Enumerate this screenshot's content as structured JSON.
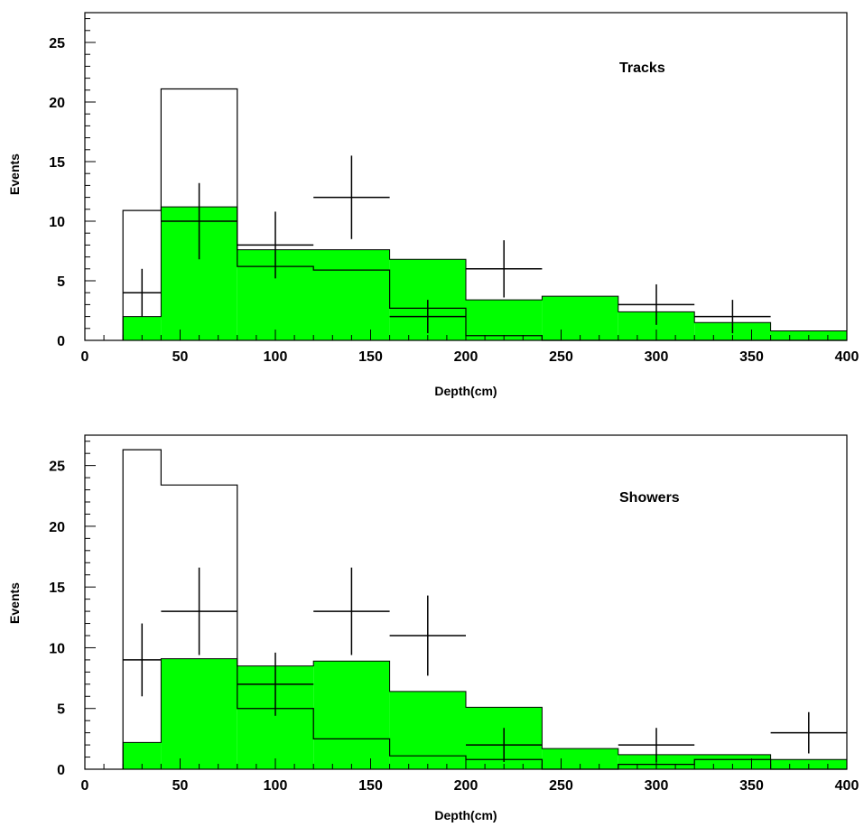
{
  "chart_data": [
    {
      "type": "histogram",
      "annotation": "Tracks",
      "xlabel": "Depth(cm)",
      "ylabel": "Events",
      "xlim": [
        0,
        400
      ],
      "ylim": [
        0,
        27.5
      ],
      "x_ticks": [
        0,
        50,
        100,
        150,
        200,
        250,
        300,
        350,
        400
      ],
      "y_ticks": [
        0,
        5,
        10,
        15,
        20,
        25
      ],
      "fill_color": "#00ff00",
      "series": [
        {
          "style": "outline",
          "bins": [
            {
              "x0": 20,
              "x1": 40,
              "y": 10.9
            },
            {
              "x0": 40,
              "x1": 80,
              "y": 21.1
            },
            {
              "x0": 80,
              "x1": 120,
              "y": 6.2
            },
            {
              "x0": 120,
              "x1": 160,
              "y": 5.9
            },
            {
              "x0": 160,
              "x1": 200,
              "y": 2.7
            },
            {
              "x0": 200,
              "x1": 240,
              "y": 0.4
            },
            {
              "x0": 240,
              "x1": 400,
              "y": 0
            }
          ]
        },
        {
          "style": "filled",
          "bins": [
            {
              "x0": 20,
              "x1": 40,
              "y": 2.0
            },
            {
              "x0": 40,
              "x1": 80,
              "y": 11.2
            },
            {
              "x0": 80,
              "x1": 160,
              "y": 7.6
            },
            {
              "x0": 160,
              "x1": 200,
              "y": 6.8
            },
            {
              "x0": 200,
              "x1": 240,
              "y": 3.4
            },
            {
              "x0": 240,
              "x1": 280,
              "y": 3.7
            },
            {
              "x0": 280,
              "x1": 320,
              "y": 2.4
            },
            {
              "x0": 320,
              "x1": 360,
              "y": 1.5
            },
            {
              "x0": 360,
              "x1": 400,
              "y": 0.8
            }
          ]
        },
        {
          "style": "data",
          "points": [
            {
              "x": 30,
              "xerr": 10,
              "y": 4,
              "yerr": 2.0
            },
            {
              "x": 60,
              "xerr": 20,
              "y": 10,
              "yerr": 3.2
            },
            {
              "x": 100,
              "xerr": 20,
              "y": 8,
              "yerr": 2.8
            },
            {
              "x": 140,
              "xerr": 20,
              "y": 12,
              "yerr": 3.5
            },
            {
              "x": 180,
              "xerr": 20,
              "y": 2,
              "yerr": 1.4
            },
            {
              "x": 220,
              "xerr": 20,
              "y": 6,
              "yerr": 2.4
            },
            {
              "x": 300,
              "xerr": 20,
              "y": 3,
              "yerr": 1.7
            },
            {
              "x": 340,
              "xerr": 20,
              "y": 2,
              "yerr": 1.4
            }
          ]
        }
      ]
    },
    {
      "type": "histogram",
      "annotation": "Showers",
      "xlabel": "Depth(cm)",
      "ylabel": "Events",
      "xlim": [
        0,
        400
      ],
      "ylim": [
        0,
        27.5
      ],
      "x_ticks": [
        0,
        50,
        100,
        150,
        200,
        250,
        300,
        350,
        400
      ],
      "y_ticks": [
        0,
        5,
        10,
        15,
        20,
        25
      ],
      "fill_color": "#00ff00",
      "series": [
        {
          "style": "outline",
          "bins": [
            {
              "x0": 20,
              "x1": 40,
              "y": 26.3
            },
            {
              "x0": 40,
              "x1": 80,
              "y": 23.4
            },
            {
              "x0": 80,
              "x1": 120,
              "y": 5.0
            },
            {
              "x0": 120,
              "x1": 160,
              "y": 2.5
            },
            {
              "x0": 160,
              "x1": 200,
              "y": 1.1
            },
            {
              "x0": 200,
              "x1": 240,
              "y": 0.8
            },
            {
              "x0": 240,
              "x1": 280,
              "y": 0
            },
            {
              "x0": 280,
              "x1": 320,
              "y": 0.4
            },
            {
              "x0": 320,
              "x1": 360,
              "y": 0.8
            },
            {
              "x0": 360,
              "x1": 400,
              "y": 0
            }
          ]
        },
        {
          "style": "filled",
          "bins": [
            {
              "x0": 20,
              "x1": 40,
              "y": 2.2
            },
            {
              "x0": 40,
              "x1": 80,
              "y": 9.1
            },
            {
              "x0": 80,
              "x1": 120,
              "y": 8.5
            },
            {
              "x0": 120,
              "x1": 160,
              "y": 8.9
            },
            {
              "x0": 160,
              "x1": 200,
              "y": 6.4
            },
            {
              "x0": 200,
              "x1": 240,
              "y": 5.1
            },
            {
              "x0": 240,
              "x1": 280,
              "y": 1.7
            },
            {
              "x0": 280,
              "x1": 360,
              "y": 1.2
            },
            {
              "x0": 360,
              "x1": 400,
              "y": 0.8
            }
          ]
        },
        {
          "style": "data",
          "points": [
            {
              "x": 30,
              "xerr": 10,
              "y": 9,
              "yerr": 3.0
            },
            {
              "x": 60,
              "xerr": 20,
              "y": 13,
              "yerr": 3.6
            },
            {
              "x": 100,
              "xerr": 20,
              "y": 7,
              "yerr": 2.6
            },
            {
              "x": 140,
              "xerr": 20,
              "y": 13,
              "yerr": 3.6
            },
            {
              "x": 180,
              "xerr": 20,
              "y": 11,
              "yerr": 3.3
            },
            {
              "x": 220,
              "xerr": 20,
              "y": 2,
              "yerr": 1.4
            },
            {
              "x": 300,
              "xerr": 20,
              "y": 2,
              "yerr": 1.4
            },
            {
              "x": 380,
              "xerr": 20,
              "y": 3,
              "yerr": 1.7
            }
          ]
        }
      ]
    }
  ]
}
